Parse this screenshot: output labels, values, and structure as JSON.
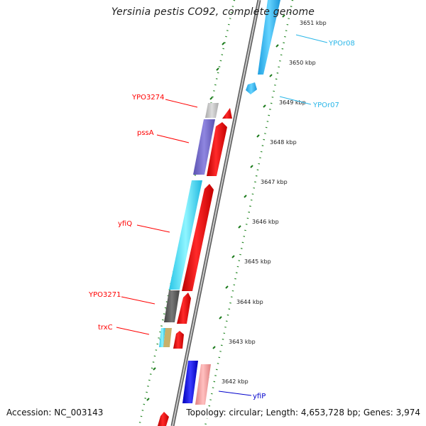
{
  "title": "Yersinia pestis CO92, complete genome",
  "footer": {
    "accession": "Accession: NC_003143",
    "summary": "Topology: circular; Length: 4,653,728 bp; Genes: 3,974"
  },
  "scale_labels": [
    "3651 kbp",
    "3650 kbp",
    "3649 kbp",
    "3648 kbp",
    "3647 kbp",
    "3646 kbp",
    "3645 kbp",
    "3644 kbp",
    "3643 kbp",
    "3642 kbp"
  ],
  "genes_left": [
    {
      "name": "YPO3274",
      "color": "#ff0000"
    },
    {
      "name": "pssA",
      "color": "#ff0000"
    },
    {
      "name": "yfiQ",
      "color": "#ff0000"
    },
    {
      "name": "YPO3271",
      "color": "#ff0000"
    },
    {
      "name": "trxC",
      "color": "#ff0000"
    }
  ],
  "genes_right": [
    {
      "name": "YPOr08",
      "color": "#29b6e8"
    },
    {
      "name": "YPOr07",
      "color": "#29b6e8"
    },
    {
      "name": "yfiP",
      "color": "#0000cc"
    }
  ]
}
